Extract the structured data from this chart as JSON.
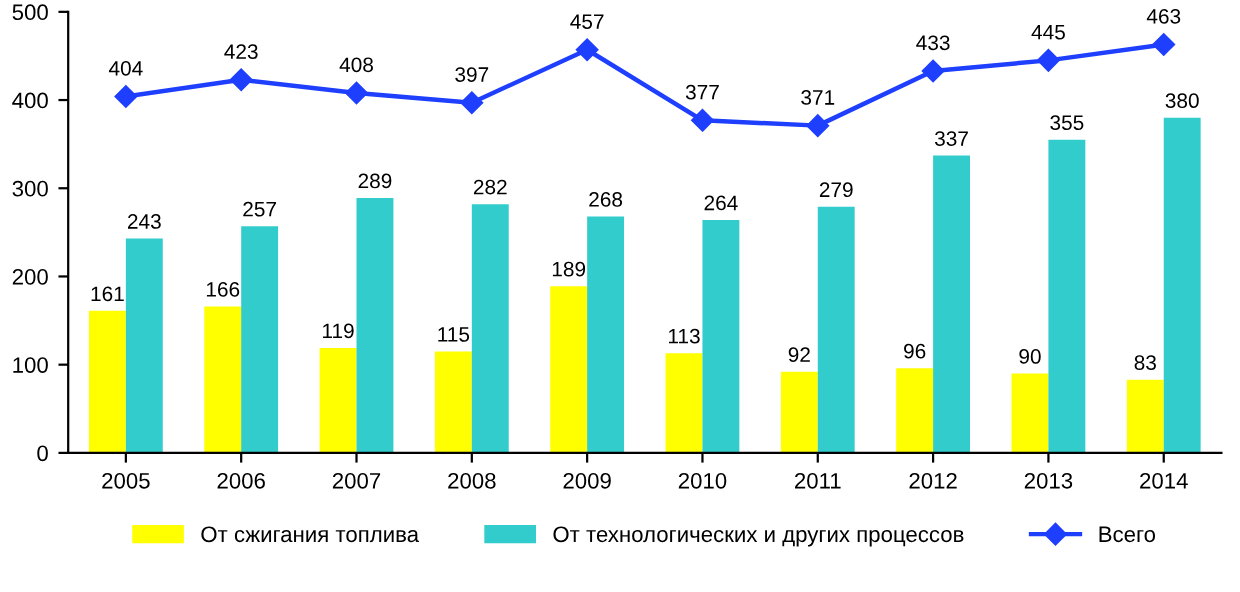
{
  "chart_data": {
    "type": "bar",
    "categories": [
      "2005",
      "2006",
      "2007",
      "2008",
      "2009",
      "2010",
      "2011",
      "2012",
      "2013",
      "2014"
    ],
    "series": [
      {
        "name": "От сжигания топлива",
        "color": "#ffff00",
        "values": [
          161,
          166,
          119,
          115,
          189,
          113,
          92,
          96,
          90,
          83
        ]
      },
      {
        "name": "От технологических и других процессов",
        "color": "#33cccc",
        "values": [
          243,
          257,
          289,
          282,
          268,
          264,
          279,
          337,
          355,
          380
        ]
      },
      {
        "name": "Всего",
        "type": "line",
        "color": "#1f3fff",
        "marker": "diamond",
        "values": [
          404,
          423,
          408,
          397,
          457,
          377,
          371,
          433,
          445,
          463
        ]
      }
    ],
    "ylim": [
      0,
      500
    ],
    "yticks": [
      0,
      100,
      200,
      300,
      400,
      500
    ],
    "grid": false,
    "legend": "bottom",
    "data_labels": true
  }
}
